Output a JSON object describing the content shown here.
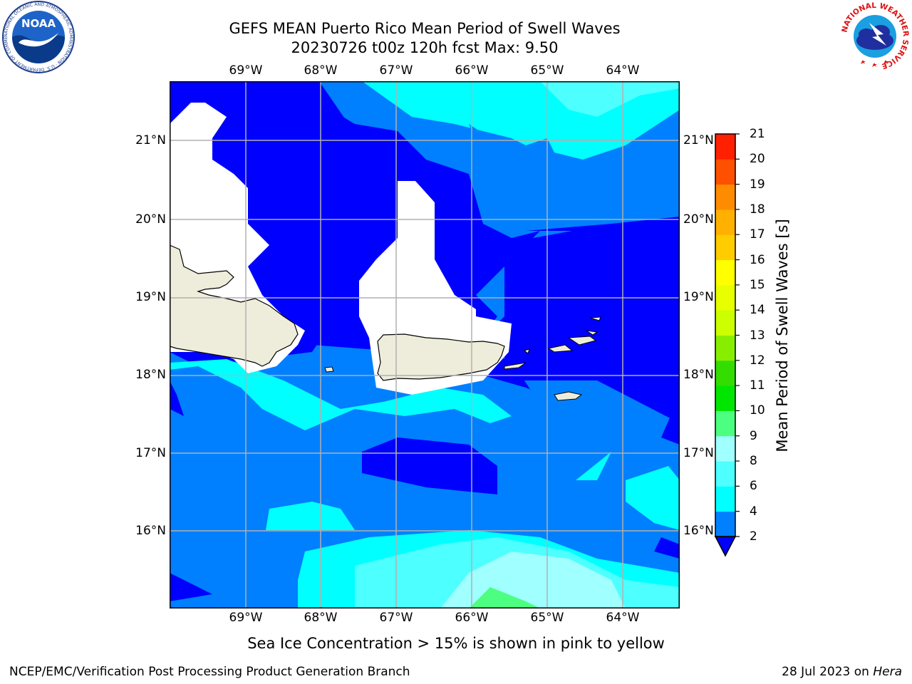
{
  "header": {
    "title_line1": "GEFS MEAN Puerto Rico Mean Period of Swell Waves",
    "title_line2": "20230726 t00z 120h fcst   Max: 9.50"
  },
  "map": {
    "lon_labels": [
      "69°W",
      "68°W",
      "67°W",
      "66°W",
      "65°W",
      "64°W"
    ],
    "lat_labels": [
      "21°N",
      "20°N",
      "19°N",
      "18°N",
      "17°N",
      "16°N"
    ],
    "land_color": "#eeeddb",
    "grid_color": "#b0b0b0"
  },
  "colorbar": {
    "label": "Mean Period of Swell Waves [s]",
    "tick_labels": [
      "2",
      "4",
      "6",
      "8",
      "9",
      "10",
      "11",
      "12",
      "13",
      "14",
      "15",
      "16",
      "17",
      "18",
      "19",
      "20",
      "21"
    ],
    "colors": [
      "#0000ff",
      "#0080ff",
      "#00ffff",
      "#4dffff",
      "#a0ffff",
      "#4dff80",
      "#00e600",
      "#33dd00",
      "#88ee00",
      "#ccff00",
      "#e8ff00",
      "#ffff00",
      "#ffcc00",
      "#ffb000",
      "#ff8c00",
      "#ff5000",
      "#ff2000",
      "#ff0000"
    ],
    "under_color": "#0000ff"
  },
  "footer": {
    "note": "Sea Ice Concentration > 15% is shown in pink to yellow",
    "credit_left": "NCEP/EMC/Verification Post Processing Product Generation Branch",
    "credit_date": "28 Jul 2023 on",
    "credit_machine": "Hera"
  },
  "logos": {
    "noaa_text": "NOAA",
    "noaa_ring_text": "NATIONAL OCEANIC AND ATMOSPHERIC ADMINISTRATION · U.S. DEPARTMENT OF COMMERCE",
    "nws_ring_text": "NATIONAL WEATHER SERVICE"
  }
}
